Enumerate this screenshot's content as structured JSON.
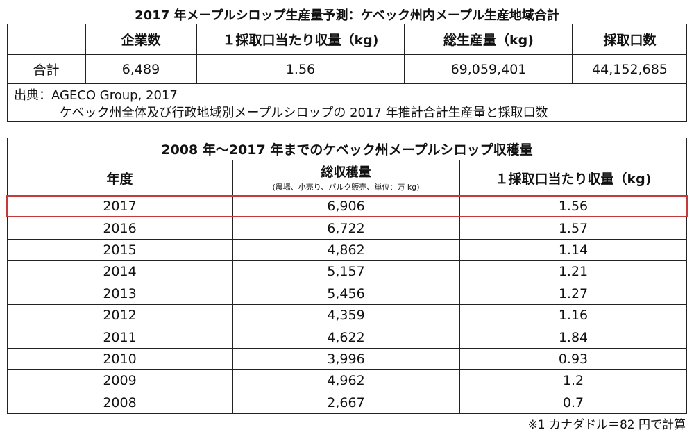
{
  "table1": {
    "title": "2017 年メープルシロップ生産量予測：ケベック州内メープル生産地域合計",
    "headers": [
      "企業数",
      "１採取口当たり収量（kg)",
      "総生産量（kg)",
      "採取口数"
    ],
    "row_label": "合計",
    "values": [
      "6,489",
      "1.56",
      "69,059,401",
      "44,152,685"
    ],
    "source": [
      "出典：AGECO Group, 2017",
      "ケベック州全体及び行政地域別メープルシロップの 2017 年推計合計生産量と採取口数"
    ]
  },
  "table2": {
    "title": "2008 年〜2017 年までのケベック州メープルシロップ収穫量",
    "headers": [
      "年度",
      "総収穫量",
      "１採取口当たり収量（kg)"
    ],
    "header_note": "(農場、小売り、バルク販売、単位：万 kg)",
    "rows": [
      [
        "2017",
        "6,906",
        "1.56"
      ],
      [
        "2016",
        "6,722",
        "1.57"
      ],
      [
        "2015",
        "4,862",
        "1.14"
      ],
      [
        "2014",
        "5,157",
        "1.21"
      ],
      [
        "2013",
        "5,456",
        "1.27"
      ],
      [
        "2012",
        "4,359",
        "1.16"
      ],
      [
        "2011",
        "4,622",
        "1.84"
      ],
      [
        "2010",
        "3,996",
        "0.93"
      ],
      [
        "2009",
        "4,962",
        "1.2"
      ],
      [
        "2008",
        "2,667",
        "0.7"
      ]
    ],
    "footnote": "※1 カナダドル＝82 円で計算"
  }
}
